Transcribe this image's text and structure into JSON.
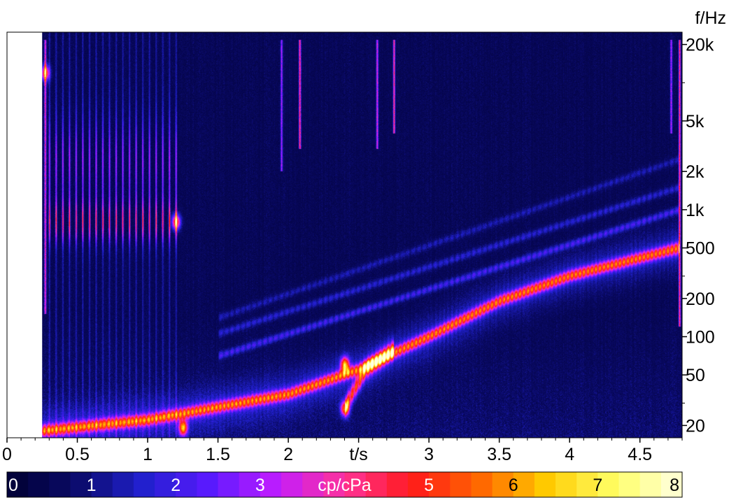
{
  "chart_data": {
    "type": "heatmap",
    "x": {
      "unit_label": "t/s",
      "range": [
        0,
        4.8
      ],
      "ticks": [
        {
          "value": 0,
          "label": "0"
        },
        {
          "value": 0.5,
          "label": "0.5"
        },
        {
          "value": 1,
          "label": "1"
        },
        {
          "value": 1.5,
          "label": "1.5"
        },
        {
          "value": 2,
          "label": "2"
        },
        {
          "value": 2.5,
          "label": "t/s"
        },
        {
          "value": 3,
          "label": "3"
        },
        {
          "value": 3.5,
          "label": "3.5"
        },
        {
          "value": 4,
          "label": "4"
        },
        {
          "value": 4.5,
          "label": "4.5"
        }
      ]
    },
    "y": {
      "unit_label": "f/Hz",
      "scale": "log",
      "range": [
        16,
        25000
      ],
      "ticks": [
        {
          "value": 20,
          "label": "20"
        },
        {
          "value": 50,
          "label": "50"
        },
        {
          "value": 100,
          "label": "100"
        },
        {
          "value": 200,
          "label": "200"
        },
        {
          "value": 500,
          "label": "500"
        },
        {
          "value": 1000,
          "label": "1k"
        },
        {
          "value": 2000,
          "label": "2k"
        },
        {
          "value": 5000,
          "label": "5k"
        },
        {
          "value": 20000,
          "label": "20k"
        }
      ]
    },
    "colorbar": {
      "unit_label": "cp/cPa",
      "range": [
        0,
        8
      ],
      "ticks": [
        {
          "value": 0,
          "label": "0"
        },
        {
          "value": 1,
          "label": "1"
        },
        {
          "value": 2,
          "label": "2"
        },
        {
          "value": 3,
          "label": "3"
        },
        {
          "value": 4,
          "label": "cp/cPa"
        },
        {
          "value": 5,
          "label": "5"
        },
        {
          "value": 6,
          "label": "6"
        },
        {
          "value": 7,
          "label": "7"
        },
        {
          "value": 8,
          "label": "8"
        }
      ],
      "colors": [
        "#000033",
        "#0a0a66",
        "#2020cc",
        "#5a1aff",
        "#c21cff",
        "#ff3399",
        "#ff1a1a",
        "#ff6600",
        "#ffcc00",
        "#ffff66",
        "#ffffe0"
      ]
    },
    "data_start_time": 0.25,
    "features": {
      "main_tone": {
        "t": [
          0.25,
          1.0,
          2.0,
          2.5,
          3.0,
          3.5,
          4.0,
          4.78
        ],
        "f": [
          18,
          22,
          35,
          55,
          100,
          190,
          300,
          500
        ],
        "intensity": 4.5
      },
      "harmonics": [
        {
          "t": [
            1.5,
            4.78
          ],
          "f": [
            70,
            1000
          ],
          "intensity": 1.6
        },
        {
          "t": [
            1.5,
            4.78
          ],
          "f": [
            105,
            1500
          ],
          "intensity": 1.2
        },
        {
          "t": [
            1.5,
            4.78
          ],
          "f": [
            140,
            2500
          ],
          "intensity": 0.9
        }
      ],
      "lower_tone": {
        "t": [
          2.4,
          2.55,
          2.75
        ],
        "f": [
          28,
          55,
          80
        ],
        "intensity": 4.2
      },
      "hot_spots": [
        {
          "t": 2.4,
          "f": 60,
          "intensity": 5.3
        },
        {
          "t": 2.4,
          "f": 27,
          "intensity": 5.0
        },
        {
          "t": 1.2,
          "f": 800,
          "intensity": 4.8
        },
        {
          "t": 1.25,
          "f": 19,
          "intensity": 5.2
        },
        {
          "t": 0.27,
          "f": 12000,
          "intensity": 4.4
        }
      ],
      "pulse_train": {
        "t_start": 0.3,
        "t_end": 1.2,
        "count": 19,
        "f_center": 800,
        "intensity": 3.4
      },
      "transients": [
        {
          "t": 0.27,
          "f_min": 150,
          "f_max": 22000,
          "intensity": 4.0
        },
        {
          "t": 1.95,
          "f_min": 2000,
          "f_max": 22000,
          "intensity": 3.0
        },
        {
          "t": 2.08,
          "f_min": 3000,
          "f_max": 22000,
          "intensity": 4.8
        },
        {
          "t": 2.63,
          "f_min": 3000,
          "f_max": 22000,
          "intensity": 3.6
        },
        {
          "t": 2.75,
          "f_min": 4000,
          "f_max": 22000,
          "intensity": 4.4
        },
        {
          "t": 4.72,
          "f_min": 4000,
          "f_max": 22000,
          "intensity": 3.0
        },
        {
          "t": 4.78,
          "f_min": 120,
          "f_max": 22000,
          "intensity": 4.6
        }
      ]
    }
  }
}
